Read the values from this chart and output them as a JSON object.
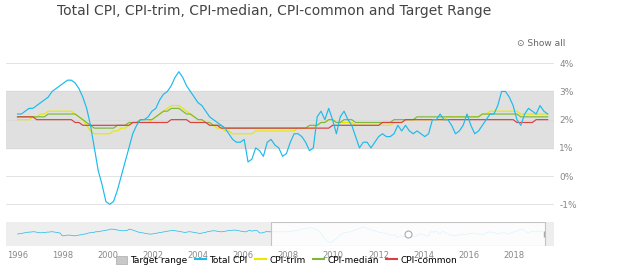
{
  "title": "Total CPI, CPI-trim, CPI-median, CPI-common and Target Range",
  "title_fontsize": 10,
  "background_color": "#ffffff",
  "target_band_color": "#e0e0e0",
  "target_band_low": 1.0,
  "target_band_high": 3.0,
  "ylim": [
    -1.5,
    4.5
  ],
  "yticks": [
    -1,
    0,
    1,
    2,
    3,
    4
  ],
  "ytick_labels": [
    "-1%",
    "0%",
    "1%",
    "2%",
    "3%",
    "4%"
  ],
  "xlim_main": [
    2007.25,
    2019.4
  ],
  "xlim_nav": [
    1995.5,
    2019.8
  ],
  "colors": {
    "total_cpi": "#1BBAED",
    "cpi_trim": "#E8E800",
    "cpi_median": "#7DB83A",
    "cpi_common": "#D94040"
  },
  "linewidth": 0.85,
  "legend_colors": [
    "#c8c8c8",
    "#1BBAED",
    "#E8E800",
    "#7DB83A",
    "#D94040"
  ],
  "legend_labels": [
    "Target range",
    "Total CPI",
    "CPI-trim",
    "CPI-median",
    "CPI-common"
  ],
  "nav_bg": "#eeeeee",
  "nav_select_color": "#ffffff"
}
